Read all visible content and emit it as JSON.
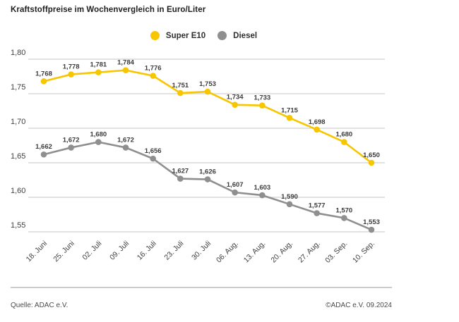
{
  "title": "Kraftstoffpreise im Wochenvergleich in Euro/Liter",
  "legend": {
    "items": [
      {
        "label": "Super E10",
        "color": "#F7C600"
      },
      {
        "label": "Diesel",
        "color": "#8F8F8F"
      }
    ]
  },
  "footer": {
    "source": "Quelle: ADAC e.V.",
    "copyright": "©ADAC e.V. 09.2024"
  },
  "colors": {
    "super_e10": "#F7C600",
    "diesel": "#8F8F8F",
    "gridline": "#D9D9D9",
    "tick_text": "#3f3f3f",
    "value_label_text": "#3c3c3c"
  },
  "chart_data": {
    "type": "line",
    "title": "Kraftstoffpreise im Wochenvergleich in Euro/Liter",
    "xlabel": "",
    "ylabel": "Euro/Liter",
    "ylim": [
      1.55,
      1.8
    ],
    "y_ticks": [
      1.8,
      1.75,
      1.7,
      1.65,
      1.6,
      1.55
    ],
    "grid": true,
    "legend_position": "top",
    "decimal_separator": ",",
    "categories": [
      "18. Juni",
      "25. Juni",
      "02. Juli",
      "09. Juli",
      "16. Juli",
      "23. Juli",
      "30. Juli",
      "06. Aug.",
      "13. Aug.",
      "20. Aug.",
      "27. Aug.",
      "03. Sep.",
      "10. Sep."
    ],
    "series": [
      {
        "name": "Super E10",
        "color": "#F7C600",
        "values": [
          1.768,
          1.778,
          1.781,
          1.784,
          1.776,
          1.751,
          1.753,
          1.734,
          1.733,
          1.715,
          1.698,
          1.68,
          1.65
        ]
      },
      {
        "name": "Diesel",
        "color": "#8F8F8F",
        "values": [
          1.662,
          1.672,
          1.68,
          1.672,
          1.656,
          1.627,
          1.626,
          1.607,
          1.603,
          1.59,
          1.577,
          1.57,
          1.553
        ]
      }
    ]
  }
}
